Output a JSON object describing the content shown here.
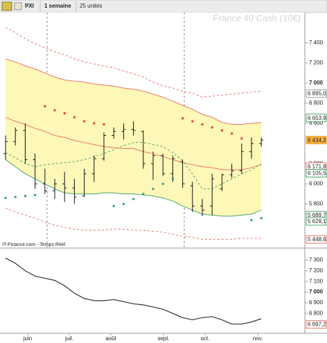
{
  "toolbar": {
    "symbol": "PXI",
    "period": "1 semaine",
    "units": "25 unités"
  },
  "chart_data": [
    {
      "type": "ohlc",
      "title": "France 40 Cash (10€)",
      "source": "IT-Finance.com - Temps Réel",
      "months": [
        "juin",
        "juil.",
        "août",
        "sept.",
        "oct.",
        "nov."
      ],
      "open": [
        6300,
        6420,
        6530,
        6240,
        6000,
        5930,
        6000,
        5960,
        5880,
        6100,
        6250,
        6480,
        6520,
        6540,
        6520,
        6200,
        6280,
        6100,
        6220,
        5980,
        5780,
        5780,
        5950,
        6090,
        6130,
        6320,
        6400
      ],
      "high": [
        6480,
        6560,
        6600,
        6300,
        6150,
        6050,
        6120,
        6050,
        6150,
        6280,
        6510,
        6560,
        6600,
        6620,
        6530,
        6320,
        6300,
        6280,
        6240,
        6020,
        5850,
        6100,
        6100,
        6200,
        6400,
        6460,
        6460
      ],
      "low": [
        6240,
        6380,
        6200,
        5950,
        5900,
        5850,
        5820,
        5800,
        5870,
        6020,
        6230,
        6450,
        6440,
        6480,
        6150,
        6040,
        6080,
        6020,
        5960,
        5720,
        5680,
        5690,
        5930,
        6060,
        6100,
        6250,
        6370
      ],
      "close": [
        6420,
        6530,
        6240,
        6000,
        5930,
        6000,
        5960,
        5870,
        6100,
        6250,
        6480,
        6520,
        6540,
        6530,
        6200,
        6280,
        6100,
        6250,
        6000,
        5780,
        5740,
        6050,
        6090,
        6130,
        6320,
        6400,
        6434.3
      ],
      "bar_color": "#111111",
      "lines": [
        {
          "color": "#e8736a",
          "dash": false,
          "values": [
            7240,
            7210,
            7170,
            7140,
            7100,
            7060,
            7030,
            7020,
            7010,
            6990,
            6980,
            6970,
            6950,
            6940,
            6920,
            6890,
            6860,
            6820,
            6780,
            6740,
            6690,
            6660,
            6610,
            6590,
            6590,
            6600,
            6610
          ]
        },
        {
          "color": "#4aa36c",
          "dash": false,
          "values": [
            6240,
            6170,
            6100,
            6050,
            6000,
            5950,
            5910,
            5900,
            5900,
            5900,
            5910,
            5910,
            5900,
            5900,
            5890,
            5880,
            5860,
            5830,
            5780,
            5740,
            5700,
            5690,
            5680,
            5680,
            5690,
            5700,
            5740
          ]
        },
        {
          "color": "#e8736a",
          "dash": false,
          "values": [
            6660,
            6620,
            6590,
            6550,
            6520,
            6480,
            6460,
            6430,
            6410,
            6390,
            6370,
            6360,
            6350,
            6350,
            6320,
            6300,
            6270,
            6240,
            6210,
            6190,
            6170,
            6160,
            6140,
            6140,
            6140,
            6160,
            6190
          ]
        },
        {
          "color": "#4aa36c",
          "dash": true,
          "values": [
            6310,
            6260,
            6200,
            6170,
            6190,
            6200,
            6210,
            6220,
            6240,
            6270,
            6300,
            6340,
            6380,
            6410,
            6410,
            6390,
            6370,
            6310,
            6230,
            6100,
            5950,
            5950,
            6000,
            6050,
            6100,
            6140,
            6200
          ]
        },
        {
          "color": "#e8736a",
          "dash": true,
          "values": [
            7550,
            7500,
            7440,
            7390,
            7350,
            7310,
            7280,
            7240,
            7210,
            7190,
            7170,
            7150,
            7120,
            7090,
            7060,
            7010,
            6970,
            6950,
            6920,
            6900,
            6860,
            6870,
            6880,
            6890,
            6900,
            6910,
            6920
          ]
        },
        {
          "color": "#e8736a",
          "dash": true,
          "values": [
            5760,
            5720,
            5690,
            5660,
            5620,
            5590,
            5570,
            5550,
            5540,
            5540,
            5540,
            5550,
            5550,
            5540,
            5540,
            5530,
            5520,
            5500,
            5480,
            5470,
            5450,
            5450,
            5450,
            5450,
            5460,
            5460,
            5460
          ]
        }
      ],
      "band_fill": "#fdf7b8",
      "sar": [
        5860,
        5870,
        5880,
        5890,
        6770,
        6730,
        6700,
        6660,
        6620,
        6600,
        6590,
        5780,
        5800,
        5850,
        5900,
        5950,
        6000,
        6050,
        6650,
        6620,
        6590,
        6560,
        6530,
        6500,
        6450,
        5640,
        5660
      ],
      "sar_colors": {
        "above": "#e0433a",
        "below": "#2e9e8a"
      },
      "ylim": [
        5370,
        7700
      ],
      "yticks": [
        {
          "value": 7400,
          "label": "7 400"
        },
        {
          "value": 7200,
          "label": "7 200"
        },
        {
          "value": 7000,
          "label": "7 000"
        },
        {
          "value": 6800,
          "label": "6 800"
        },
        {
          "value": 6600,
          "label": "6 600"
        },
        {
          "value": 6200,
          "label": "6 200"
        },
        {
          "value": 6000,
          "label": "6 000"
        },
        {
          "value": 5800,
          "label": "5 800"
        }
      ],
      "price_labels": [
        {
          "value": 6895.0,
          "label": "6 895,0",
          "color": "#9aa0a0"
        },
        {
          "value": 6653.9,
          "label": "6 653,9",
          "color": "#4aa36c"
        },
        {
          "value": 6434.3,
          "label": "6 434,3",
          "color": "#f0a030",
          "background": "#f6b042"
        },
        {
          "value": 6171.8,
          "label": "6 171,8",
          "color": "#e8736a"
        },
        {
          "value": 6105.5,
          "label": "6 105,5",
          "color": "#4aa36c"
        },
        {
          "value": 5689.7,
          "label": "5 689,7",
          "color": "#4aa36c"
        },
        {
          "value": 5628.1,
          "label": "5 628,1",
          "color": "#4aa36c"
        },
        {
          "value": 5448.6,
          "label": "5 448,6",
          "color": "#e8736a"
        }
      ]
    },
    {
      "type": "line",
      "color": "#333333",
      "values": [
        7320,
        7270,
        7200,
        7150,
        7130,
        7110,
        7060,
        6990,
        6940,
        6920,
        6920,
        6930,
        6910,
        6890,
        6880,
        6860,
        6840,
        6800,
        6760,
        6740,
        6760,
        6770,
        6740,
        6700,
        6700,
        6720,
        6750
      ],
      "ylim": [
        6620,
        7400
      ],
      "yticks": [
        {
          "value": 7300,
          "label": "7 300"
        },
        {
          "value": 7200,
          "label": "7 200"
        },
        {
          "value": 7100,
          "label": "7 100"
        },
        {
          "value": 7000,
          "label": "7 000"
        },
        {
          "value": 6900,
          "label": "6 900"
        },
        {
          "value": 6800,
          "label": "6 800"
        }
      ],
      "price_labels": [
        {
          "value": 6697.2,
          "label": "6 697,2",
          "color": "#e8736a"
        }
      ]
    }
  ]
}
